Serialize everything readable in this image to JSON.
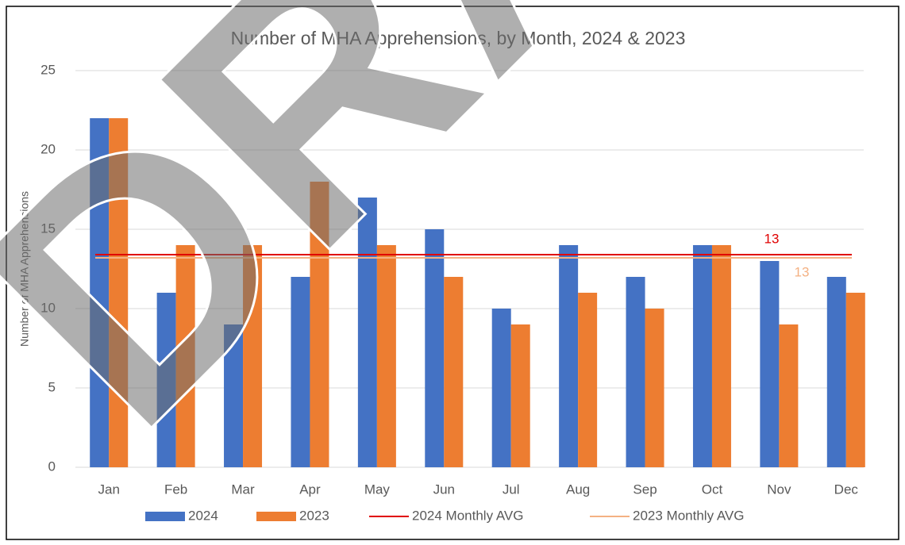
{
  "chart_data": {
    "type": "bar",
    "title": "Number of MHA Apprehensions, by Month, 2024 & 2023",
    "y_label": "Number of MHA Apprehensions",
    "watermark": "DRAFT",
    "categories": [
      "Jan",
      "Feb",
      "Mar",
      "Apr",
      "May",
      "Jun",
      "Jul",
      "Aug",
      "Sep",
      "Oct",
      "Nov",
      "Dec"
    ],
    "series": [
      {
        "name": "2024",
        "color": "#4472c4",
        "values": [
          22,
          11,
          9,
          12,
          17,
          15,
          10,
          14,
          12,
          14,
          13,
          12
        ]
      },
      {
        "name": "2023",
        "color": "#ed7d31",
        "values": [
          22,
          14,
          14,
          18,
          14,
          12,
          9,
          11,
          10,
          14,
          9,
          11
        ]
      }
    ],
    "averages": [
      {
        "name": "2024 Monthly AVG",
        "color": "#e00000",
        "value": 13.4,
        "value_label": "13"
      },
      {
        "name": "2023 Monthly AVG",
        "color": "#f4b183",
        "value": 13.2,
        "value_label": "13"
      }
    ],
    "ylim": [
      0,
      25
    ],
    "yticks": [
      0,
      5,
      10,
      15,
      20,
      25
    ],
    "grid": true,
    "legend": "bottom"
  }
}
